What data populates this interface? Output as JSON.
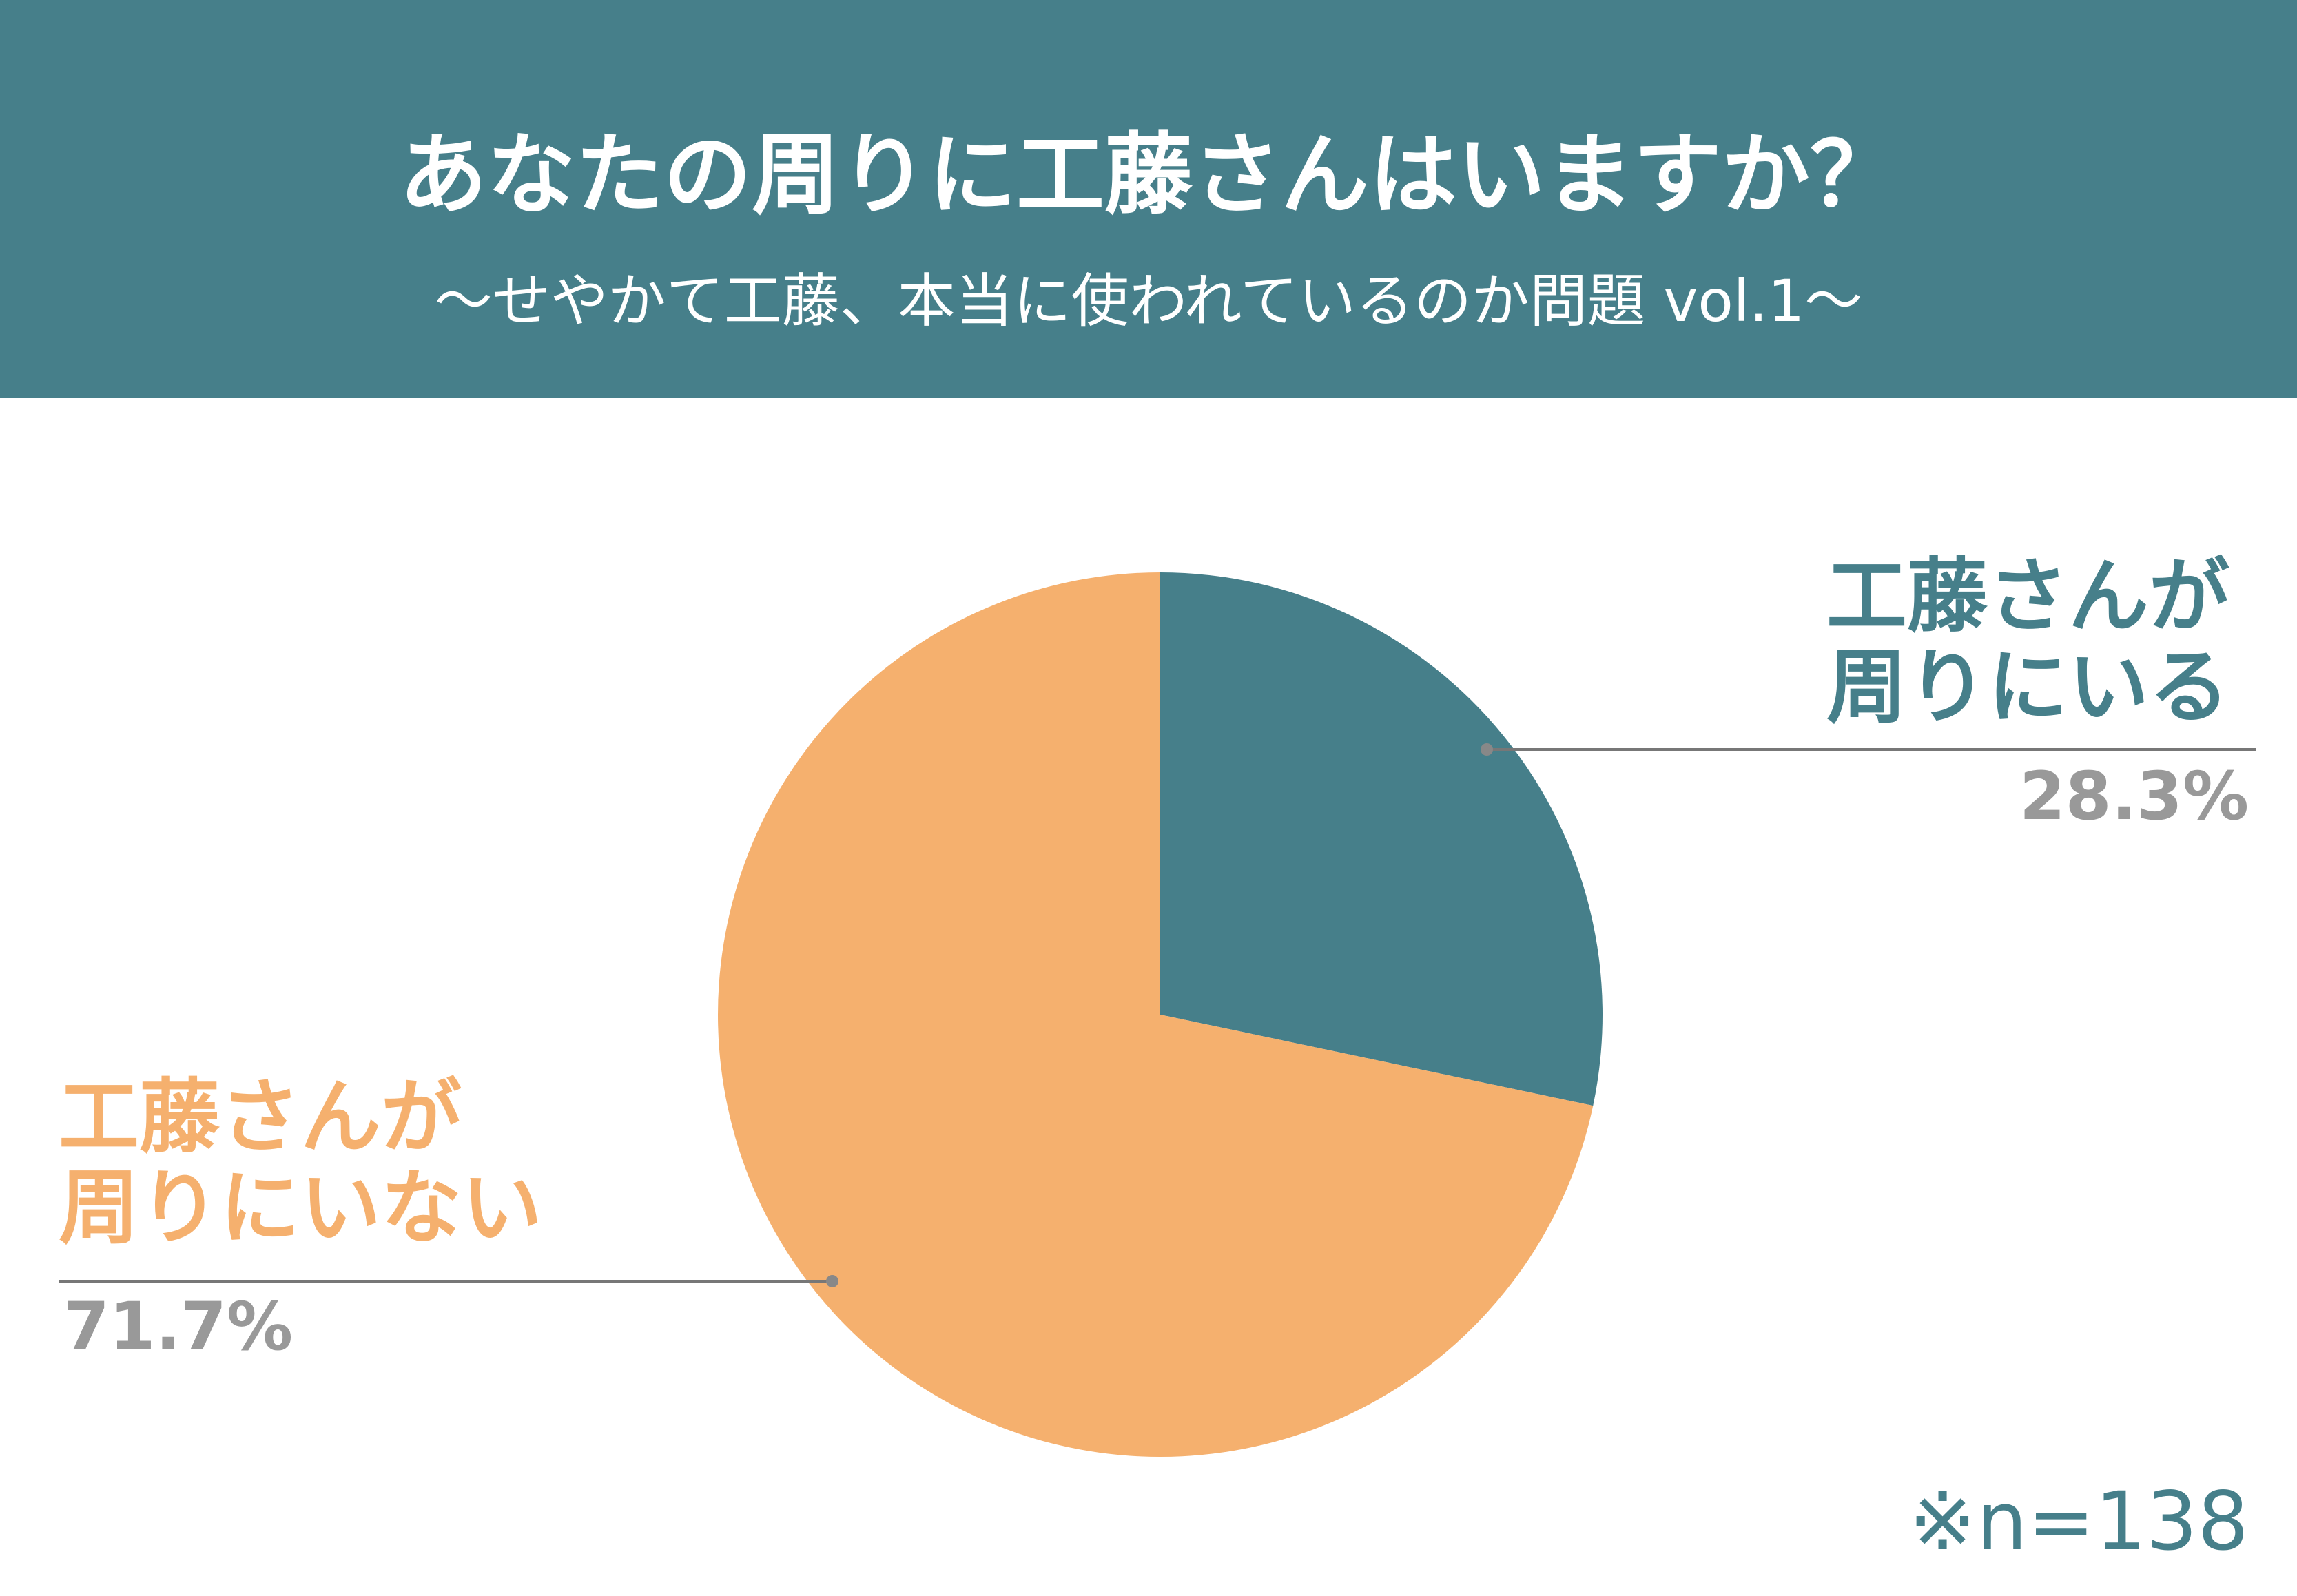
{
  "chart_data": {
    "type": "pie",
    "title": "あなたの周りに工藤さんはいますか？",
    "subtitle": "〜せやかて工藤、本当に使われているのか問題 vol.1〜",
    "categories": [
      "工藤さんが\n周りにいる",
      "工藤さんが\n周りにいない"
    ],
    "values": [
      28.3,
      71.7
    ],
    "value_labels": [
      "28.3%",
      "71.7%"
    ],
    "colors": [
      "#467f8a",
      "#f5b06e"
    ],
    "note": "※n=138"
  }
}
